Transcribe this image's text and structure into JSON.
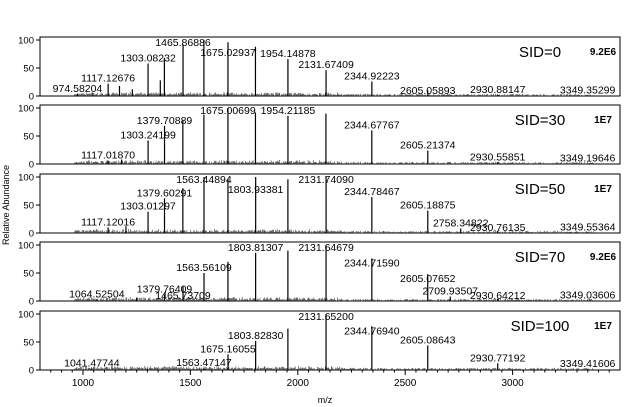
{
  "chart_data": {
    "type": "stacked-mass-spectra",
    "xlabel": "m/z",
    "ylabel": "Relative Abundance",
    "xlim": [
      800,
      3500
    ],
    "x_ticks": [
      1000,
      1500,
      2000,
      2500,
      3000
    ],
    "y_ticks": [
      0,
      50,
      100
    ],
    "ylim": [
      0,
      100
    ],
    "panels": [
      {
        "sid_label": "SID=0",
        "scale_label": "9.2E6",
        "peaks": [
          {
            "mz": 974.58,
            "intensity": 4
          },
          {
            "mz": 1046.0,
            "intensity": 6
          },
          {
            "mz": 1117.13,
            "intensity": 22
          },
          {
            "mz": 1170.0,
            "intensity": 18
          },
          {
            "mz": 1230.0,
            "intensity": 12
          },
          {
            "mz": 1303.08,
            "intensity": 58
          },
          {
            "mz": 1360.0,
            "intensity": 28
          },
          {
            "mz": 1379.0,
            "intensity": 68
          },
          {
            "mz": 1465.87,
            "intensity": 92
          },
          {
            "mz": 1563.0,
            "intensity": 100
          },
          {
            "mz": 1675.03,
            "intensity": 96
          },
          {
            "mz": 1803.0,
            "intensity": 88
          },
          {
            "mz": 1954.15,
            "intensity": 66
          },
          {
            "mz": 2131.67,
            "intensity": 46
          },
          {
            "mz": 2344.92,
            "intensity": 26
          },
          {
            "mz": 2605.06,
            "intensity": 10
          },
          {
            "mz": 2930.88,
            "intensity": 2
          },
          {
            "mz": 3349.35,
            "intensity": 1
          }
        ],
        "labels": [
          {
            "text": "974.58204",
            "mz": 974.58
          },
          {
            "text": "1117.12676",
            "mz": 1117.13
          },
          {
            "text": "1303.08232",
            "mz": 1303.08
          },
          {
            "text": "1465.86886",
            "mz": 1465.87
          },
          {
            "text": "1675.02937",
            "mz": 1675.03
          },
          {
            "text": "1954.14878",
            "mz": 1954.15
          },
          {
            "text": "2131.67409",
            "mz": 2131.67
          },
          {
            "text": "2344.92223",
            "mz": 2344.92
          },
          {
            "text": "2605.05893",
            "mz": 2605.06
          },
          {
            "text": "2930.88147",
            "mz": 2930.88
          },
          {
            "text": "3349.35299",
            "mz": 3349.35
          }
        ]
      },
      {
        "sid_label": "SID=30",
        "scale_label": "1E7",
        "peaks": [
          {
            "mz": 1117.02,
            "intensity": 6
          },
          {
            "mz": 1180.0,
            "intensity": 8
          },
          {
            "mz": 1303.24,
            "intensity": 42
          },
          {
            "mz": 1379.71,
            "intensity": 68
          },
          {
            "mz": 1465.0,
            "intensity": 78
          },
          {
            "mz": 1563.0,
            "intensity": 88
          },
          {
            "mz": 1675.01,
            "intensity": 100
          },
          {
            "mz": 1803.0,
            "intensity": 92
          },
          {
            "mz": 1954.21,
            "intensity": 86
          },
          {
            "mz": 2131.0,
            "intensity": 90
          },
          {
            "mz": 2344.68,
            "intensity": 60
          },
          {
            "mz": 2605.21,
            "intensity": 24
          },
          {
            "mz": 2930.56,
            "intensity": 3
          },
          {
            "mz": 3349.2,
            "intensity": 1
          }
        ],
        "labels": [
          {
            "text": "1117.01870",
            "mz": 1117.02
          },
          {
            "text": "1303.24199",
            "mz": 1303.24
          },
          {
            "text": "1379.70889",
            "mz": 1379.71
          },
          {
            "text": "1675.00699",
            "mz": 1675.01
          },
          {
            "text": "1954.21185",
            "mz": 1954.21
          },
          {
            "text": "2344.67767",
            "mz": 2344.68
          },
          {
            "text": "2605.21374",
            "mz": 2605.21
          },
          {
            "text": "2930.55851",
            "mz": 2930.56
          },
          {
            "text": "3349.19646",
            "mz": 3349.2
          }
        ]
      },
      {
        "sid_label": "SID=50",
        "scale_label": "1E7",
        "peaks": [
          {
            "mz": 1117.12,
            "intensity": 10
          },
          {
            "mz": 1200.0,
            "intensity": 12
          },
          {
            "mz": 1303.01,
            "intensity": 38
          },
          {
            "mz": 1379.6,
            "intensity": 62
          },
          {
            "mz": 1465.0,
            "intensity": 80
          },
          {
            "mz": 1563.45,
            "intensity": 100
          },
          {
            "mz": 1675.0,
            "intensity": 96
          },
          {
            "mz": 1803.93,
            "intensity": 100
          },
          {
            "mz": 1954.0,
            "intensity": 96
          },
          {
            "mz": 2131.74,
            "intensity": 100
          },
          {
            "mz": 2344.78,
            "intensity": 64
          },
          {
            "mz": 2605.19,
            "intensity": 40
          },
          {
            "mz": 2758.35,
            "intensity": 8
          },
          {
            "mz": 2930.76,
            "intensity": 4
          },
          {
            "mz": 3349.55,
            "intensity": 1
          }
        ],
        "labels": [
          {
            "text": "1117.12016",
            "mz": 1117.12
          },
          {
            "text": "1303.01297",
            "mz": 1303.01
          },
          {
            "text": "1379.60291",
            "mz": 1379.6
          },
          {
            "text": "1563.44894",
            "mz": 1563.45
          },
          {
            "text": "1803.93381",
            "mz": 1803.93
          },
          {
            "text": "2131.74090",
            "mz": 2131.74
          },
          {
            "text": "2344.78467",
            "mz": 2344.78
          },
          {
            "text": "2605.18875",
            "mz": 2605.19
          },
          {
            "text": "2758.34822",
            "mz": 2758.35
          },
          {
            "text": "2930.76135",
            "mz": 2930.76
          },
          {
            "text": "3349.55364",
            "mz": 3349.55
          }
        ]
      },
      {
        "sid_label": "SID=70",
        "scale_label": "9.2E6",
        "peaks": [
          {
            "mz": 1064.53,
            "intensity": 3
          },
          {
            "mz": 1250.0,
            "intensity": 6
          },
          {
            "mz": 1379.76,
            "intensity": 12
          },
          {
            "mz": 1465.74,
            "intensity": 26
          },
          {
            "mz": 1563.56,
            "intensity": 50
          },
          {
            "mz": 1675.0,
            "intensity": 70
          },
          {
            "mz": 1803.81,
            "intensity": 86
          },
          {
            "mz": 1954.0,
            "intensity": 90
          },
          {
            "mz": 2131.65,
            "intensity": 100
          },
          {
            "mz": 2344.72,
            "intensity": 76
          },
          {
            "mz": 2605.08,
            "intensity": 48
          },
          {
            "mz": 2709.94,
            "intensity": 8
          },
          {
            "mz": 2930.64,
            "intensity": 4
          },
          {
            "mz": 3349.04,
            "intensity": 1
          }
        ],
        "labels": [
          {
            "text": "1064.52504",
            "mz": 1064.53
          },
          {
            "text": "1379.76409",
            "mz": 1379.76
          },
          {
            "text": "1465.73709",
            "mz": 1465.74
          },
          {
            "text": "1563.56109",
            "mz": 1563.56
          },
          {
            "text": "1803.81307",
            "mz": 1803.81
          },
          {
            "text": "2131.64679",
            "mz": 2131.65
          },
          {
            "text": "2344.71590",
            "mz": 2344.72
          },
          {
            "text": "2605.07652",
            "mz": 2605.08
          },
          {
            "text": "2709.93507",
            "mz": 2709.94
          },
          {
            "text": "2930.64212",
            "mz": 2930.64
          },
          {
            "text": "3349.03606",
            "mz": 3349.04
          }
        ]
      },
      {
        "sid_label": "SID=100",
        "scale_label": "1E7",
        "peaks": [
          {
            "mz": 1041.48,
            "intensity": 3
          },
          {
            "mz": 1300.0,
            "intensity": 2
          },
          {
            "mz": 1563.47,
            "intensity": 4
          },
          {
            "mz": 1675.16,
            "intensity": 28
          },
          {
            "mz": 1803.83,
            "intensity": 52
          },
          {
            "mz": 1954.0,
            "intensity": 74
          },
          {
            "mz": 2131.65,
            "intensity": 100
          },
          {
            "mz": 2344.77,
            "intensity": 78
          },
          {
            "mz": 2605.09,
            "intensity": 44
          },
          {
            "mz": 2930.77,
            "intensity": 12
          },
          {
            "mz": 3349.42,
            "intensity": 2
          }
        ],
        "labels": [
          {
            "text": "1041.47744",
            "mz": 1041.48
          },
          {
            "text": "1563.47147",
            "mz": 1563.47
          },
          {
            "text": "1675.16055",
            "mz": 1675.16
          },
          {
            "text": "1803.82830",
            "mz": 1803.83
          },
          {
            "text": "2131.65200",
            "mz": 2131.65
          },
          {
            "text": "2344.76940",
            "mz": 2344.77
          },
          {
            "text": "2605.08643",
            "mz": 2605.09
          },
          {
            "text": "2930.77192",
            "mz": 2930.77
          },
          {
            "text": "3349.41606",
            "mz": 3349.42
          }
        ]
      }
    ]
  }
}
